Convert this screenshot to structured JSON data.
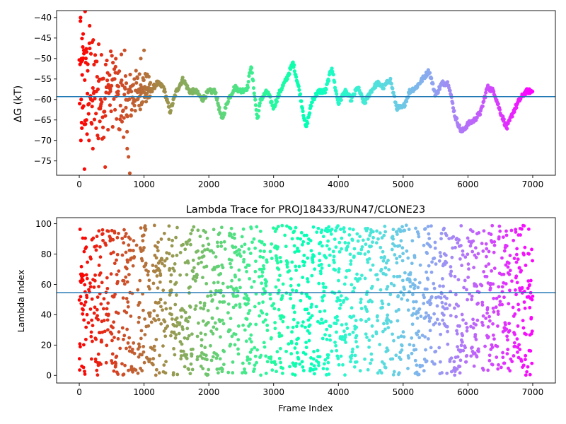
{
  "chart_data": [
    {
      "type": "scatter",
      "title": "",
      "xlabel": "",
      "ylabel": "ΔG (kT)",
      "xlim": [
        -350,
        7350
      ],
      "ylim": [
        -78.5,
        -38.3
      ],
      "xticks": [
        0,
        1000,
        2000,
        3000,
        4000,
        5000,
        6000,
        7000
      ],
      "xtick_labels": [
        "0",
        "1000",
        "2000",
        "3000",
        "4000",
        "5000",
        "6000",
        "7000"
      ],
      "yticks": [
        -75,
        -70,
        -65,
        -60,
        -55,
        -50,
        -45,
        -40
      ],
      "ytick_labels": [
        "−75",
        "−70",
        "−65",
        "−60",
        "−55",
        "−50",
        "−45",
        "−40"
      ],
      "hline": -59.3,
      "colormap": "rainbow (red at frame 0 → violet at frame 7000)",
      "x_range": [
        0,
        7000
      ],
      "grid": false,
      "point_count_approx": 7000,
      "trace": [
        [
          0,
          -55
        ],
        [
          100,
          -58
        ],
        [
          200,
          -57
        ],
        [
          300,
          -60
        ],
        [
          400,
          -58
        ],
        [
          500,
          -57
        ],
        [
          600,
          -60
        ],
        [
          700,
          -62
        ],
        [
          800,
          -59
        ],
        [
          900,
          -58
        ],
        [
          1000,
          -57
        ],
        [
          1100,
          -58
        ],
        [
          1200,
          -56
        ],
        [
          1300,
          -57
        ],
        [
          1400,
          -63
        ],
        [
          1500,
          -58
        ],
        [
          1600,
          -55
        ],
        [
          1700,
          -58
        ],
        [
          1800,
          -58
        ],
        [
          1900,
          -60
        ],
        [
          2000,
          -58
        ],
        [
          2100,
          -58
        ],
        [
          2200,
          -65
        ],
        [
          2300,
          -60
        ],
        [
          2400,
          -57
        ],
        [
          2500,
          -58
        ],
        [
          2600,
          -57
        ],
        [
          2650,
          -51.5
        ],
        [
          2700,
          -58
        ],
        [
          2750,
          -65
        ],
        [
          2800,
          -60
        ],
        [
          2900,
          -58
        ],
        [
          3000,
          -62
        ],
        [
          3100,
          -58
        ],
        [
          3200,
          -55
        ],
        [
          3300,
          -51
        ],
        [
          3400,
          -58
        ],
        [
          3500,
          -67
        ],
        [
          3600,
          -60
        ],
        [
          3700,
          -58
        ],
        [
          3800,
          -58
        ],
        [
          3900,
          -52
        ],
        [
          3950,
          -57
        ],
        [
          4000,
          -61
        ],
        [
          4100,
          -58
        ],
        [
          4200,
          -60
        ],
        [
          4300,
          -57
        ],
        [
          4400,
          -61
        ],
        [
          4500,
          -58
        ],
        [
          4600,
          -56
        ],
        [
          4700,
          -57
        ],
        [
          4800,
          -55
        ],
        [
          4900,
          -62
        ],
        [
          5000,
          -62
        ],
        [
          5100,
          -58
        ],
        [
          5200,
          -57
        ],
        [
          5300,
          -55
        ],
        [
          5400,
          -53
        ],
        [
          5500,
          -59
        ],
        [
          5600,
          -56
        ],
        [
          5700,
          -56
        ],
        [
          5800,
          -64
        ],
        [
          5900,
          -68
        ],
        [
          6000,
          -66
        ],
        [
          6100,
          -65
        ],
        [
          6200,
          -63
        ],
        [
          6300,
          -57
        ],
        [
          6400,
          -58
        ],
        [
          6500,
          -63
        ],
        [
          6600,
          -67
        ],
        [
          6700,
          -63
        ],
        [
          6800,
          -60
        ],
        [
          6900,
          -58
        ],
        [
          7000,
          -58
        ]
      ],
      "early_scatter": [
        [
          20,
          -40
        ],
        [
          25,
          -70
        ],
        [
          30,
          -60
        ],
        [
          35,
          -50
        ],
        [
          40,
          -67
        ],
        [
          45,
          -54
        ],
        [
          50,
          -62
        ],
        [
          60,
          -44
        ],
        [
          70,
          -48
        ],
        [
          80,
          -77
        ],
        [
          90,
          -38.5
        ],
        [
          100,
          -51
        ],
        [
          110,
          -65
        ],
        [
          130,
          -53
        ],
        [
          150,
          -70
        ],
        [
          160,
          -42
        ],
        [
          180,
          -60
        ],
        [
          200,
          -46
        ],
        [
          210,
          -72
        ],
        [
          230,
          -58
        ],
        [
          260,
          -67
        ],
        [
          300,
          -46.5
        ],
        [
          330,
          -60
        ],
        [
          350,
          -55
        ],
        [
          380,
          -63
        ],
        [
          400,
          -76.5
        ],
        [
          420,
          -57
        ],
        [
          480,
          -58
        ],
        [
          520,
          -51
        ],
        [
          560,
          -52
        ],
        [
          600,
          -58
        ],
        [
          650,
          -49
        ],
        [
          700,
          -48
        ],
        [
          720,
          -62
        ],
        [
          740,
          -72
        ],
        [
          760,
          -74
        ],
        [
          780,
          -78
        ],
        [
          800,
          -64
        ],
        [
          850,
          -55
        ],
        [
          900,
          -60
        ],
        [
          950,
          -50
        ],
        [
          1000,
          -48
        ]
      ]
    },
    {
      "type": "scatter",
      "title": "Lambda Trace for PROJ18433/RUN47/CLONE23",
      "xlabel": "Frame Index",
      "ylabel": "Lambda Index",
      "xlim": [
        -350,
        7350
      ],
      "ylim": [
        -5,
        104
      ],
      "xticks": [
        0,
        1000,
        2000,
        3000,
        4000,
        5000,
        6000,
        7000
      ],
      "xtick_labels": [
        "0",
        "1000",
        "2000",
        "3000",
        "4000",
        "5000",
        "6000",
        "7000"
      ],
      "yticks": [
        0,
        20,
        40,
        60,
        80,
        100
      ],
      "ytick_labels": [
        "0",
        "20",
        "40",
        "60",
        "80",
        "100"
      ],
      "hline": 54.5,
      "colormap": "rainbow (red at frame 0 → violet at frame 7000)",
      "value_range": [
        0,
        99
      ],
      "grid": false,
      "point_count_approx": 7000
    }
  ]
}
